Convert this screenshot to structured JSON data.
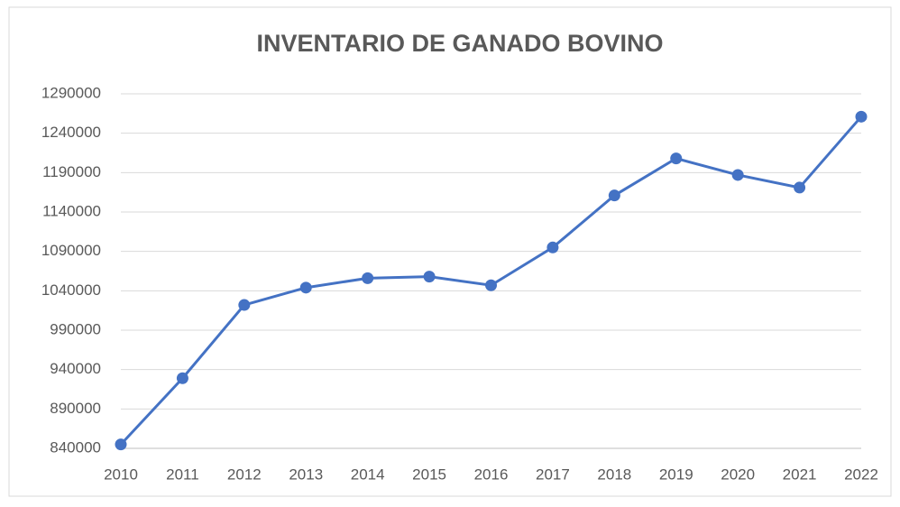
{
  "chart_data": {
    "type": "line",
    "title": "INVENTARIO DE GANADO BOVINO",
    "categories": [
      "2010",
      "2011",
      "2012",
      "2013",
      "2014",
      "2015",
      "2016",
      "2017",
      "2018",
      "2019",
      "2020",
      "2021",
      "2022"
    ],
    "series": [
      {
        "name": "Inventario",
        "color": "#4472c4",
        "values": [
          845000,
          929000,
          1022000,
          1044000,
          1056000,
          1058000,
          1047000,
          1095000,
          1161000,
          1208000,
          1187000,
          1171000,
          1261000
        ]
      }
    ],
    "ylim": [
      840000,
      1290000
    ],
    "yticks": [
      840000,
      890000,
      940000,
      990000,
      1040000,
      1090000,
      1140000,
      1190000,
      1240000,
      1290000
    ],
    "grid": true
  }
}
